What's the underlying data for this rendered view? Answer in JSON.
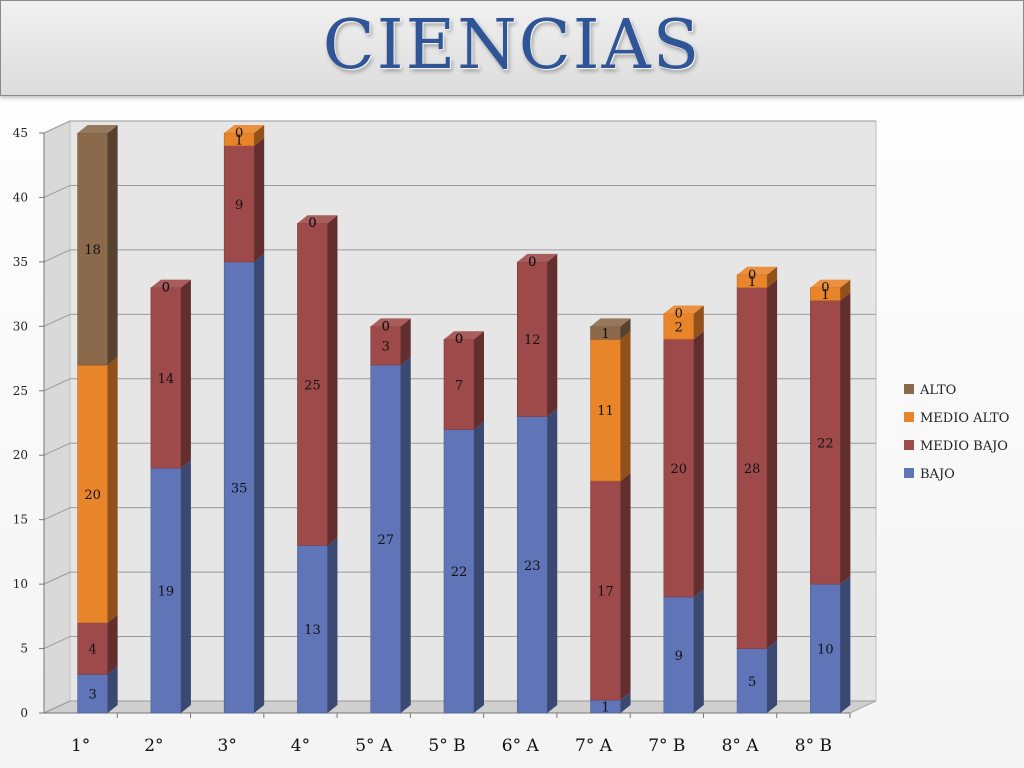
{
  "title": "CIENCIAS",
  "chart_data": {
    "type": "bar",
    "stacked": true,
    "categories": [
      "1°",
      "2°",
      "3°",
      "4°",
      "5° A",
      "5° B",
      "6° A",
      "7° A",
      "7° B",
      "8° A",
      "8° B"
    ],
    "series": [
      {
        "name": "BAJO",
        "color": "#5f75b8",
        "values": [
          3,
          19,
          35,
          13,
          27,
          22,
          23,
          1,
          9,
          5,
          10
        ]
      },
      {
        "name": "MEDIO BAJO",
        "color": "#9e4a4a",
        "values": [
          4,
          14,
          9,
          25,
          3,
          7,
          12,
          17,
          20,
          28,
          22
        ]
      },
      {
        "name": "MEDIO ALTO",
        "color": "#e8842a",
        "values": [
          20,
          0,
          1,
          0,
          0,
          0,
          0,
          11,
          2,
          1,
          1
        ]
      },
      {
        "name": "ALTO",
        "color": "#8a6a4a",
        "values": [
          18,
          0,
          0,
          0,
          0,
          0,
          0,
          1,
          0,
          0,
          0
        ]
      }
    ],
    "ylim": [
      0,
      45
    ],
    "yticks": [
      "0",
      "5",
      "10",
      "15",
      "20",
      "25",
      "30",
      "35",
      "40",
      "45"
    ],
    "grid": true,
    "legend": "right",
    "legend_order": [
      "ALTO",
      "MEDIO ALTO",
      "MEDIO BAJO",
      "BAJO"
    ]
  }
}
